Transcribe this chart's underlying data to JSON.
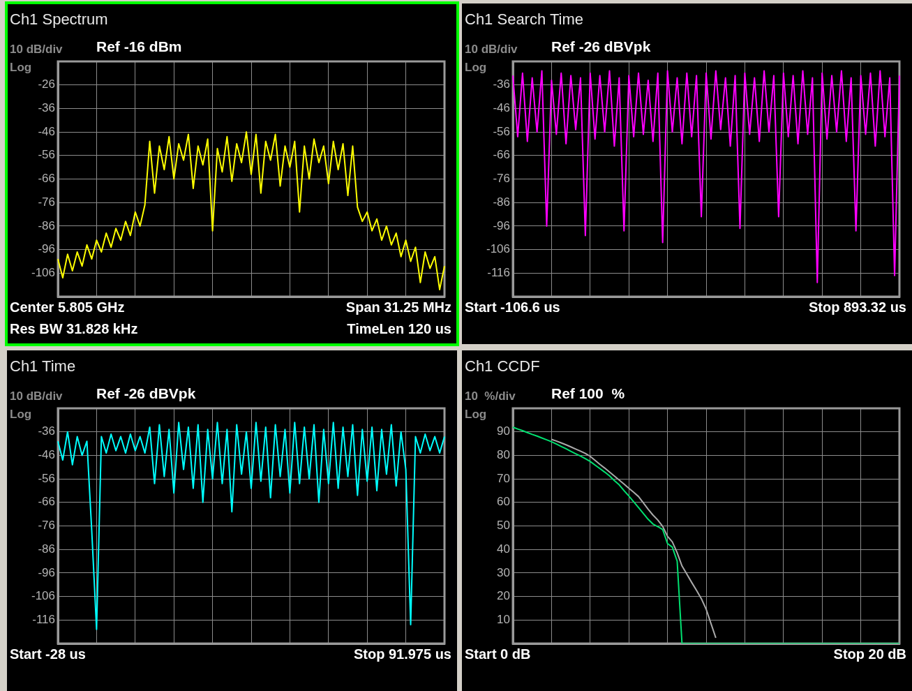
{
  "chart_data": [
    {
      "type": "line",
      "title": "Ch1 Spectrum",
      "subtitle": "Ref -16 dBm",
      "annotations": [
        "10 dB/div",
        "Log",
        "Center 5.805 GHz",
        "Span 31.25 MHz",
        "Res BW 31.828 kHz",
        "TimeLen 120 us"
      ],
      "categories": [
        null,
        null,
        null,
        null,
        null,
        null,
        null,
        null,
        null,
        null,
        null,
        null,
        null,
        null,
        null,
        null,
        null,
        null,
        null,
        null,
        null,
        null,
        null,
        null,
        null,
        null,
        null,
        null,
        null,
        null,
        null,
        null,
        null,
        null,
        null,
        null,
        null,
        null,
        null,
        null,
        null,
        null,
        null,
        null,
        null,
        null,
        null,
        null,
        null,
        null,
        null,
        null,
        null,
        null,
        null,
        null,
        null,
        null,
        null,
        null,
        null,
        null,
        null,
        null,
        null,
        null,
        null,
        null,
        null,
        null,
        null,
        null,
        null,
        null,
        null,
        null,
        null,
        null,
        null,
        null,
        null
      ],
      "series": [
        {
          "color": "#ffff00",
          "values": [
            -100,
            -108,
            -98,
            -105,
            -97,
            -103,
            -94,
            -100,
            -92,
            -97,
            -89,
            -95,
            -87,
            -92,
            -84,
            -90,
            -80,
            -86,
            -77,
            -50,
            -72,
            -52,
            -62,
            -48,
            -66,
            -51,
            -58,
            -47,
            -70,
            -52,
            -60,
            -49,
            -88,
            -53,
            -63,
            -48,
            -67,
            -51,
            -59,
            -46,
            -64,
            -47,
            -72,
            -50,
            -58,
            -47,
            -69,
            -52,
            -61,
            -50,
            -80,
            -52,
            -66,
            -49,
            -59,
            -52,
            -68,
            -50,
            -62,
            -51,
            -73,
            -52,
            -78,
            -84,
            -80,
            -88,
            -83,
            -92,
            -86,
            -94,
            -89,
            -99,
            -92,
            -101,
            -95,
            -110,
            -97,
            -104,
            -99,
            -113,
            -103
          ]
        }
      ],
      "ylim": [
        -116,
        -16
      ],
      "yticks": [
        {
          "value": -116,
          "label": null
        },
        -106,
        -96,
        -86,
        -76,
        -66,
        -56,
        -46,
        -36,
        -26,
        {
          "value": -16,
          "label": null
        }
      ],
      "grid": true,
      "legend": false,
      "marker": "none",
      "line_style": "solid",
      "tick_labels": "y"
    },
    {
      "type": "line",
      "title": "Ch1 Search Time",
      "subtitle": "Ref -26 dBVpk",
      "annotations": [
        "10 dB/div",
        "Log",
        "Start -106.6 us",
        "Stop 893.32 us"
      ],
      "categories": [
        null,
        null,
        null,
        null,
        null,
        null,
        null,
        null,
        null,
        null,
        null,
        null,
        null,
        null,
        null,
        null,
        null,
        null,
        null,
        null,
        null,
        null,
        null,
        null,
        null,
        null,
        null,
        null,
        null,
        null,
        null,
        null,
        null,
        null,
        null,
        null,
        null,
        null,
        null,
        null,
        null,
        null,
        null,
        null,
        null,
        null,
        null,
        null,
        null,
        null,
        null,
        null,
        null,
        null,
        null,
        null,
        null,
        null,
        null,
        null,
        null,
        null,
        null,
        null,
        null,
        null,
        null,
        null,
        null,
        null,
        null,
        null,
        null,
        null,
        null,
        null,
        null,
        null,
        null,
        null,
        null
      ],
      "series": [
        {
          "color": "#ff00ff",
          "values": [
            -32,
            -58,
            -31,
            -60,
            -33,
            -56,
            -30,
            -96,
            -34,
            -57,
            -31,
            -61,
            -32,
            -55,
            -33,
            -100,
            -31,
            -59,
            -32,
            -56,
            -30,
            -62,
            -33,
            -98,
            -32,
            -58,
            -31,
            -57,
            -34,
            -60,
            -31,
            -103,
            -30,
            -56,
            -33,
            -61,
            -31,
            -58,
            -32,
            -92,
            -31,
            -59,
            -30,
            -55,
            -33,
            -62,
            -32,
            -97,
            -31,
            -57,
            -33,
            -60,
            -30,
            -56,
            -32,
            -92,
            -31,
            -58,
            -32,
            -61,
            -30,
            -57,
            -33,
            -120,
            -31,
            -59,
            -32,
            -56,
            -30,
            -60,
            -33,
            -98,
            -32,
            -57,
            -31,
            -62,
            -30,
            -58,
            -33,
            -117,
            -32
          ]
        }
      ],
      "ylim": [
        -126,
        -26
      ],
      "yticks": [
        {
          "value": -126,
          "label": null
        },
        -116,
        -106,
        -96,
        -86,
        -76,
        -66,
        -56,
        -46,
        -36,
        {
          "value": -26,
          "label": null
        }
      ],
      "grid": true,
      "legend": false,
      "marker": "none",
      "line_style": "solid",
      "tick_labels": "y"
    },
    {
      "type": "line",
      "title": "Ch1 Time",
      "subtitle": "Ref -26 dBVpk",
      "annotations": [
        "10 dB/div",
        "Log",
        "Start -28 us",
        "Stop 91.975 us"
      ],
      "categories": [
        null,
        null,
        null,
        null,
        null,
        null,
        null,
        null,
        null,
        null,
        null,
        null,
        null,
        null,
        null,
        null,
        null,
        null,
        null,
        null,
        null,
        null,
        null,
        null,
        null,
        null,
        null,
        null,
        null,
        null,
        null,
        null,
        null,
        null,
        null,
        null,
        null,
        null,
        null,
        null,
        null,
        null,
        null,
        null,
        null,
        null,
        null,
        null,
        null,
        null,
        null,
        null,
        null,
        null,
        null,
        null,
        null,
        null,
        null,
        null,
        null,
        null,
        null,
        null,
        null,
        null,
        null,
        null,
        null,
        null,
        null,
        null,
        null,
        null,
        null,
        null,
        null,
        null,
        null,
        null,
        null
      ],
      "series": [
        {
          "color": "#00ffff",
          "values": [
            -40,
            -48,
            -36,
            -50,
            -38,
            -46,
            -40,
            -78,
            -120,
            -38,
            -45,
            -37,
            -44,
            -38,
            -45,
            -37,
            -44,
            -38,
            -45,
            -34,
            -58,
            -33,
            -55,
            -35,
            -62,
            -32,
            -52,
            -34,
            -60,
            -33,
            -66,
            -35,
            -56,
            -32,
            -58,
            -35,
            -70,
            -33,
            -54,
            -36,
            -60,
            -32,
            -57,
            -34,
            -64,
            -33,
            -55,
            -35,
            -62,
            -32,
            -58,
            -34,
            -56,
            -33,
            -66,
            -35,
            -58,
            -32,
            -60,
            -34,
            -55,
            -33,
            -63,
            -35,
            -57,
            -34,
            -61,
            -35,
            -54,
            -33,
            -59,
            -36,
            -52,
            -118,
            -38,
            -45,
            -37,
            -44,
            -38,
            -45,
            -38
          ]
        }
      ],
      "ylim": [
        -126,
        -26
      ],
      "yticks": [
        {
          "value": -126,
          "label": null
        },
        -116,
        -106,
        -96,
        -86,
        -76,
        -66,
        -56,
        -46,
        -36,
        {
          "value": -26,
          "label": null
        }
      ],
      "grid": true,
      "legend": false,
      "marker": "none",
      "line_style": "solid",
      "tick_labels": "y"
    },
    {
      "type": "line",
      "title": "Ch1 CCDF",
      "subtitle": "Ref 100  %",
      "annotations": [
        "10  %/div",
        "Log",
        "Start 0 dB",
        "Stop 20 dB"
      ],
      "categories": [
        null,
        null,
        null,
        null,
        null,
        null,
        null,
        null,
        null,
        null,
        null,
        null,
        null,
        null,
        null,
        null,
        null,
        null,
        null,
        null,
        null,
        null,
        null,
        null,
        null,
        null,
        null,
        null,
        null,
        null,
        null,
        null,
        null,
        null,
        null,
        null,
        null,
        null,
        null,
        null,
        null,
        null,
        null,
        null,
        null,
        null,
        null,
        null,
        null,
        null,
        null,
        null,
        null,
        null,
        null,
        null,
        null,
        null,
        null,
        null,
        null,
        null,
        null,
        null,
        null,
        null,
        null,
        null,
        null,
        null,
        null,
        null,
        null,
        null,
        null,
        null,
        null,
        null,
        null,
        null,
        null
      ],
      "series": [
        {
          "color": "#aaaaaa",
          "values": [
            null,
            null,
            null,
            null,
            null,
            null,
            null,
            null,
            86.8,
            86.1,
            85.3,
            84.5,
            83.6,
            82.7,
            81.8,
            80.8,
            79.6,
            77.9,
            76.2,
            74.6,
            72.9,
            71.2,
            69.5,
            67.8,
            66,
            64.3,
            62.5,
            59.8,
            57.1,
            54.6,
            52.5,
            49.8,
            45.6,
            43.2,
            38.6,
            33,
            29.5,
            26,
            22.6,
            19.1,
            14.6,
            8.5,
            2.4,
            null,
            null,
            null,
            null,
            null,
            null,
            null,
            null,
            null,
            null,
            null,
            null,
            null,
            null,
            null,
            null,
            null,
            null,
            null,
            null,
            null,
            null,
            null,
            null,
            null,
            null,
            null,
            null,
            null,
            null,
            null,
            null,
            null,
            null,
            null,
            null,
            null,
            null
          ]
        },
        {
          "color": "#00e070",
          "values": [
            92,
            91.2,
            90.5,
            89.7,
            88.9,
            88.2,
            87.4,
            86.6,
            85.8,
            84.8,
            83.8,
            82.8,
            81.7,
            80.7,
            79.7,
            78.6,
            77.4,
            75.9,
            74.4,
            72.9,
            71.3,
            69.3,
            67.5,
            65,
            62.7,
            60.3,
            57.8,
            55.3,
            52.8,
            50.8,
            49.7,
            48.5,
            42.5,
            41,
            35,
            0,
            0,
            0,
            0,
            0,
            0,
            0,
            0,
            0,
            0,
            0,
            0,
            0,
            0,
            0,
            0,
            0,
            0,
            0,
            0,
            0,
            0,
            0,
            0,
            0,
            0,
            0,
            0,
            0,
            0,
            0,
            0,
            0,
            0,
            0,
            0,
            0,
            0,
            0,
            0,
            0,
            0,
            0,
            0,
            0,
            0
          ]
        }
      ],
      "ylim": [
        0,
        100
      ],
      "yticks": [
        {
          "value": 0,
          "label": null
        },
        10,
        20,
        30,
        40,
        50,
        60,
        70,
        80,
        90,
        {
          "value": 100,
          "label": null
        }
      ],
      "grid": true,
      "legend": false,
      "marker": "none",
      "line_style": "solid",
      "tick_labels": "y"
    }
  ]
}
